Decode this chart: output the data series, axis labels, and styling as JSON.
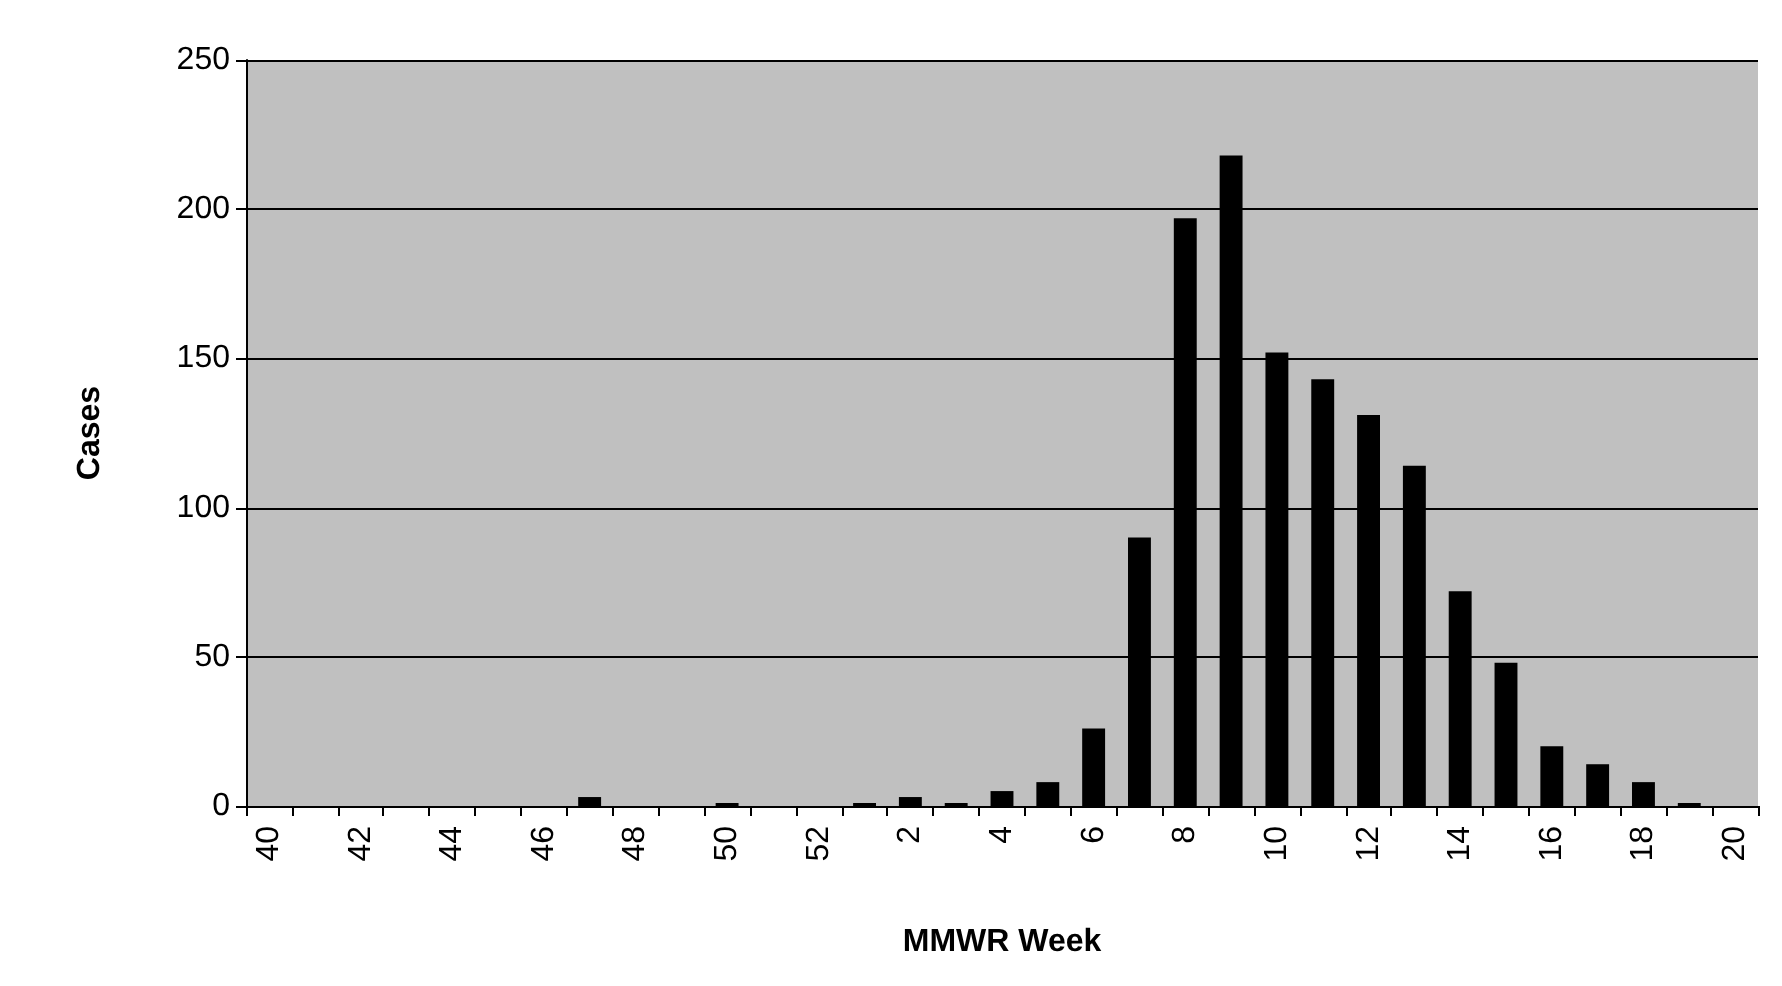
{
  "chart_data": {
    "type": "bar",
    "xlabel": "MMWR Week",
    "ylabel": "Cases",
    "categories": [
      "40",
      null,
      "42",
      null,
      "44",
      null,
      "46",
      null,
      "48",
      null,
      "50",
      null,
      "52",
      null,
      "2",
      null,
      "4",
      null,
      "6",
      null,
      "8",
      null,
      "10",
      null,
      "12",
      null,
      "14",
      null,
      "16",
      null,
      "18",
      null,
      "20"
    ],
    "values": [
      0,
      0,
      0,
      0,
      0,
      0,
      0,
      3,
      0,
      0,
      1,
      0,
      0,
      1,
      3,
      1,
      5,
      8,
      26,
      90,
      197,
      218,
      152,
      143,
      131,
      114,
      72,
      48,
      20,
      14,
      8,
      1,
      0
    ],
    "color": "#000000",
    "ylim": [
      0,
      250
    ],
    "yticks": [
      0,
      50,
      100,
      150,
      200,
      250
    ],
    "grid": "y"
  }
}
